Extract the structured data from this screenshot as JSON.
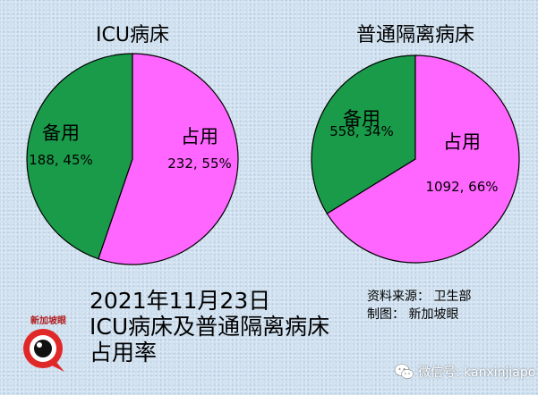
{
  "chart_data": [
    {
      "type": "pie",
      "title": "ICU病床",
      "slices": [
        {
          "label": "备用",
          "value": 188,
          "percent": "45%",
          "value_label": "188, 45%",
          "color": "#1a9b4a"
        },
        {
          "label": "占用",
          "value": 232,
          "percent": "55%",
          "value_label": "232, 55%",
          "color": "#ff66ff"
        }
      ]
    },
    {
      "type": "pie",
      "title": "普通隔离病床",
      "slices": [
        {
          "label": "备用",
          "value": 558,
          "percent": "34%",
          "value_label": "558, 34%",
          "color": "#1a9b4a"
        },
        {
          "label": "占用",
          "value": 1092,
          "percent": "66%",
          "value_label": "1092, 66%",
          "color": "#ff66ff"
        }
      ]
    }
  ],
  "footer": {
    "date": "2021年11月23日",
    "title_line1": "ICU病床及普通隔离病床",
    "title_line2": "占用率"
  },
  "credits": {
    "source": "资料来源：   卫生部",
    "made_by": "制图：   新加坡眼"
  },
  "logo": {
    "text": "新加坡眼",
    "icon": "eye-logo-icon"
  },
  "watermark": {
    "text": "微信号: kanxinjiapo",
    "icon": "wechat-icon"
  },
  "colors": {
    "spare": "#1a9b4a",
    "occupied": "#ff66ff",
    "background": "#cfe0ef"
  }
}
